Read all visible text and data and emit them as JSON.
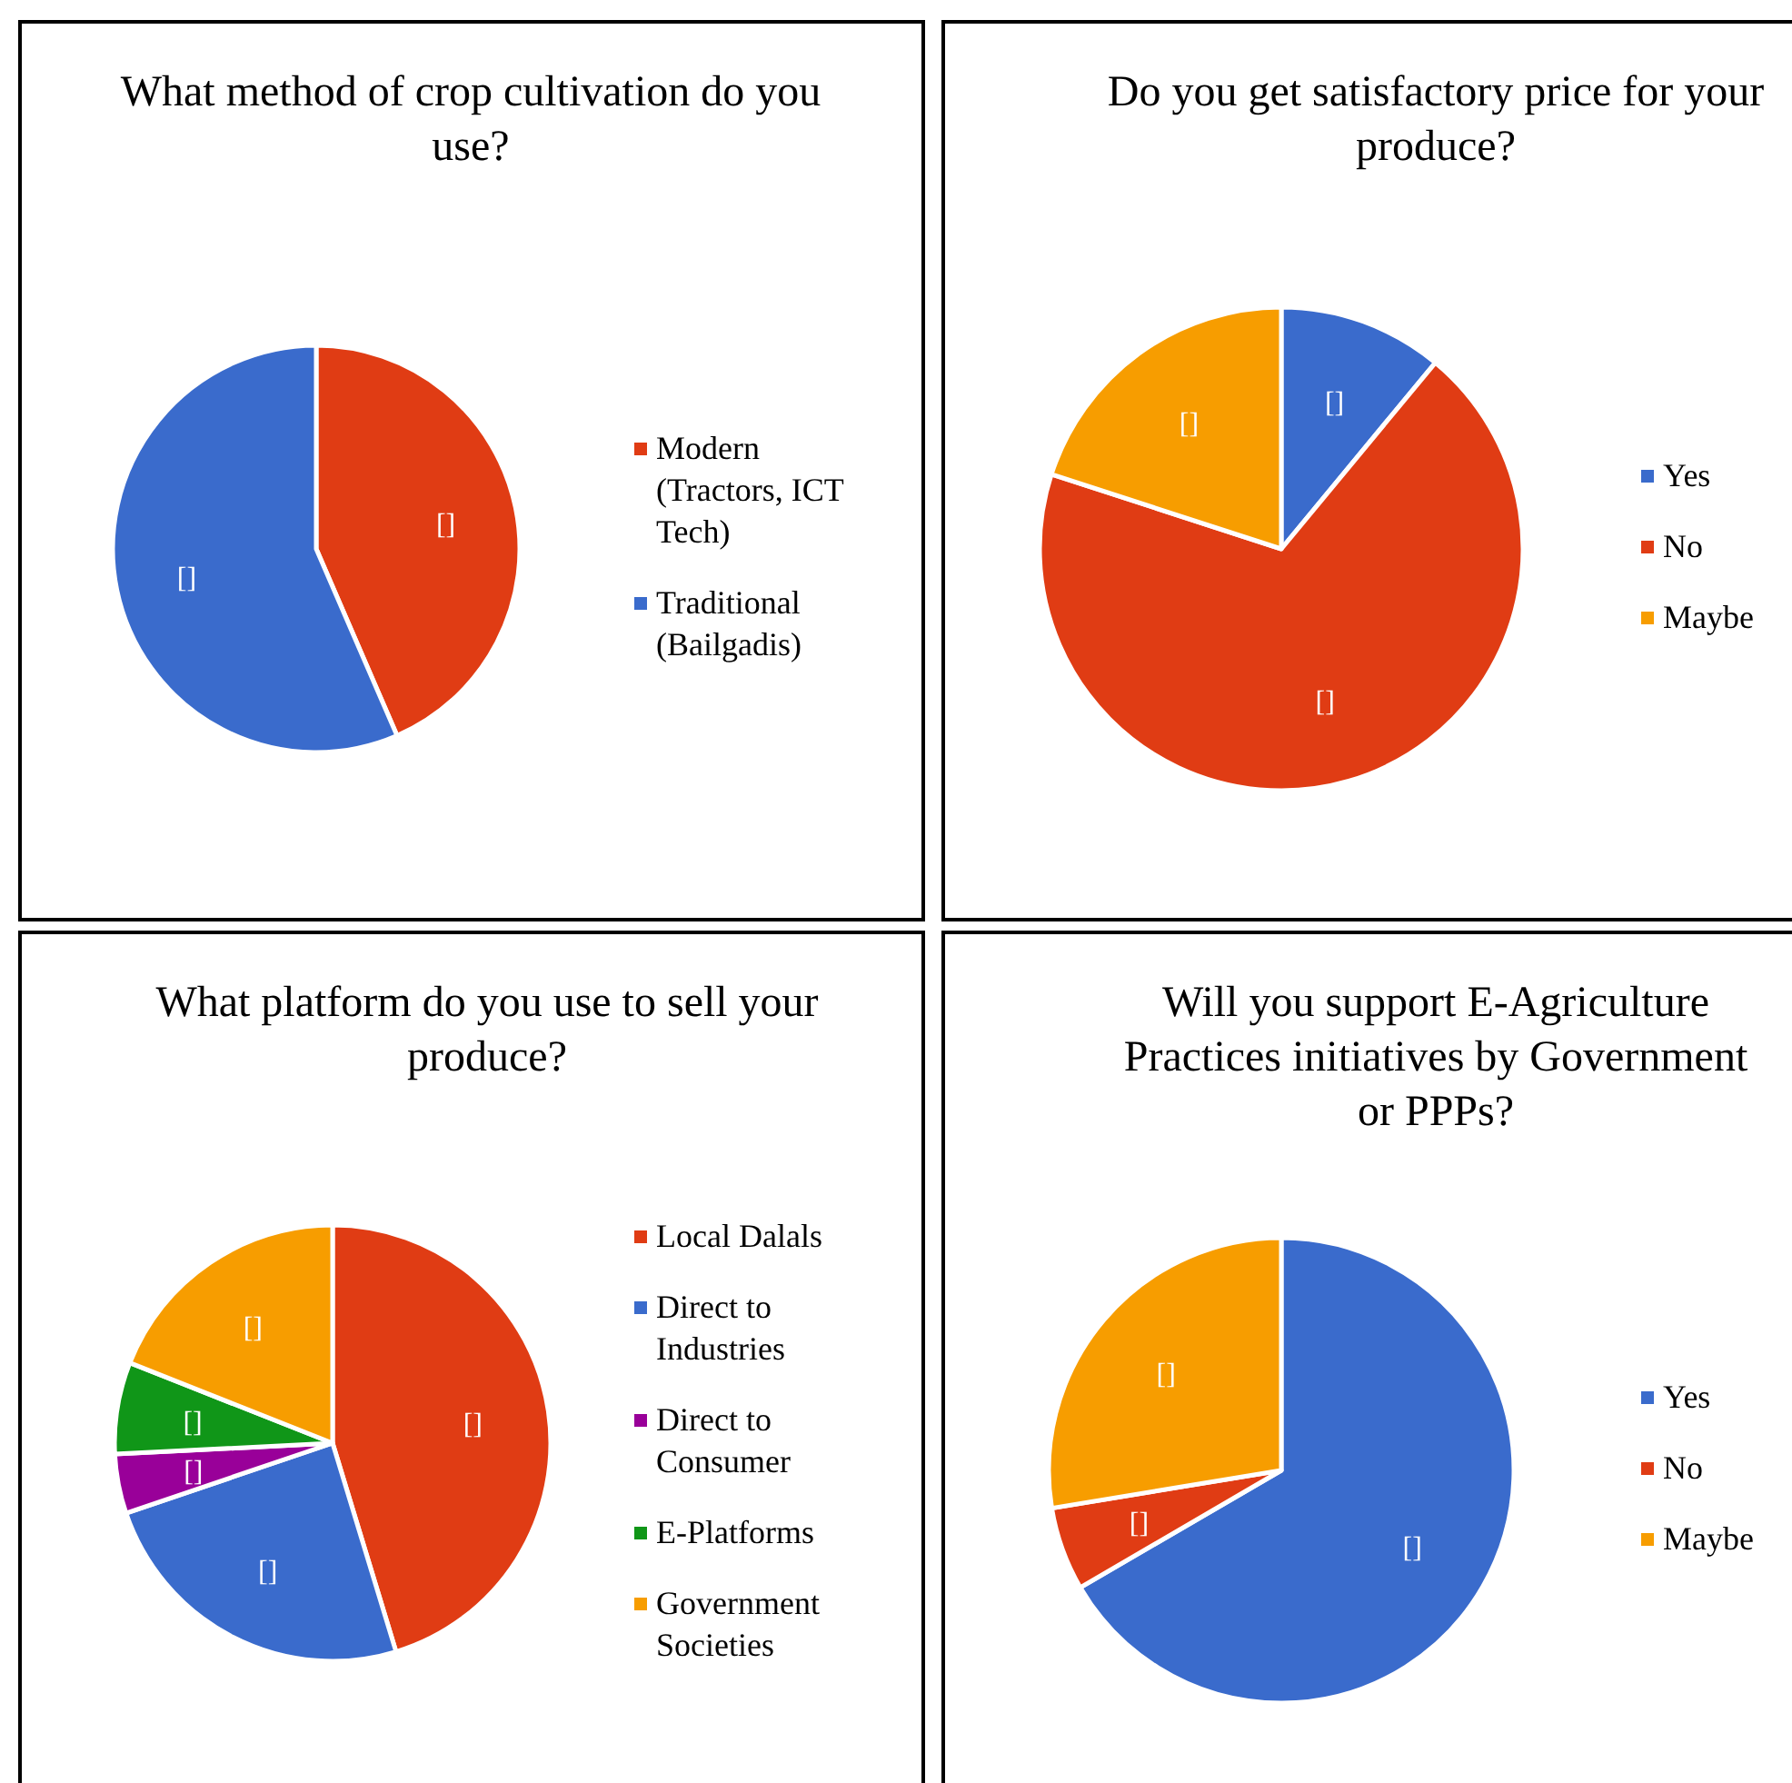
{
  "chart_data": [
    {
      "type": "pie",
      "title": "What method of crop cultivation do you use?",
      "categories": [
        "Modern (Tractors, ICT Tech)",
        "Traditional (Bailgadis)"
      ],
      "values": [
        43.5,
        56.5
      ],
      "colors": [
        "#e03c14",
        "#3a6bcc"
      ],
      "value_labels": [
        "[]",
        "[]"
      ],
      "legend": "right"
    },
    {
      "type": "pie",
      "title": "Do you get satisfactory price for your produce?",
      "categories": [
        "Yes",
        "No",
        "Maybe"
      ],
      "values": [
        11,
        69,
        20
      ],
      "colors": [
        "#3a6bcc",
        "#e03c14",
        "#f79d00"
      ],
      "value_labels": [
        "[]",
        "[]",
        "[]"
      ],
      "legend": "right"
    },
    {
      "type": "pie",
      "title": "What platform do you use to sell your produce?",
      "categories": [
        "Local Dalals",
        "Direct to Industries",
        "Direct to Consumer",
        "E-Platforms",
        "Government Societies"
      ],
      "values": [
        45.3,
        24.5,
        4.4,
        6.8,
        19
      ],
      "colors": [
        "#e03c14",
        "#3a6bcc",
        "#990099",
        "#109618",
        "#f79d00"
      ],
      "value_labels": [
        "[]",
        "[]",
        "[]",
        "[]",
        "[]"
      ],
      "legend": "right"
    },
    {
      "type": "pie",
      "title": "Will you support E-Agriculture Practices initiatives by Government or PPPs?",
      "categories": [
        "Yes",
        "No",
        "Maybe"
      ],
      "values": [
        66.6,
        5.8,
        27.6
      ],
      "colors": [
        "#3a6bcc",
        "#e03c14",
        "#f79d00"
      ],
      "value_labels": [
        "[]",
        "[]",
        "[]"
      ],
      "legend": "right"
    }
  ]
}
